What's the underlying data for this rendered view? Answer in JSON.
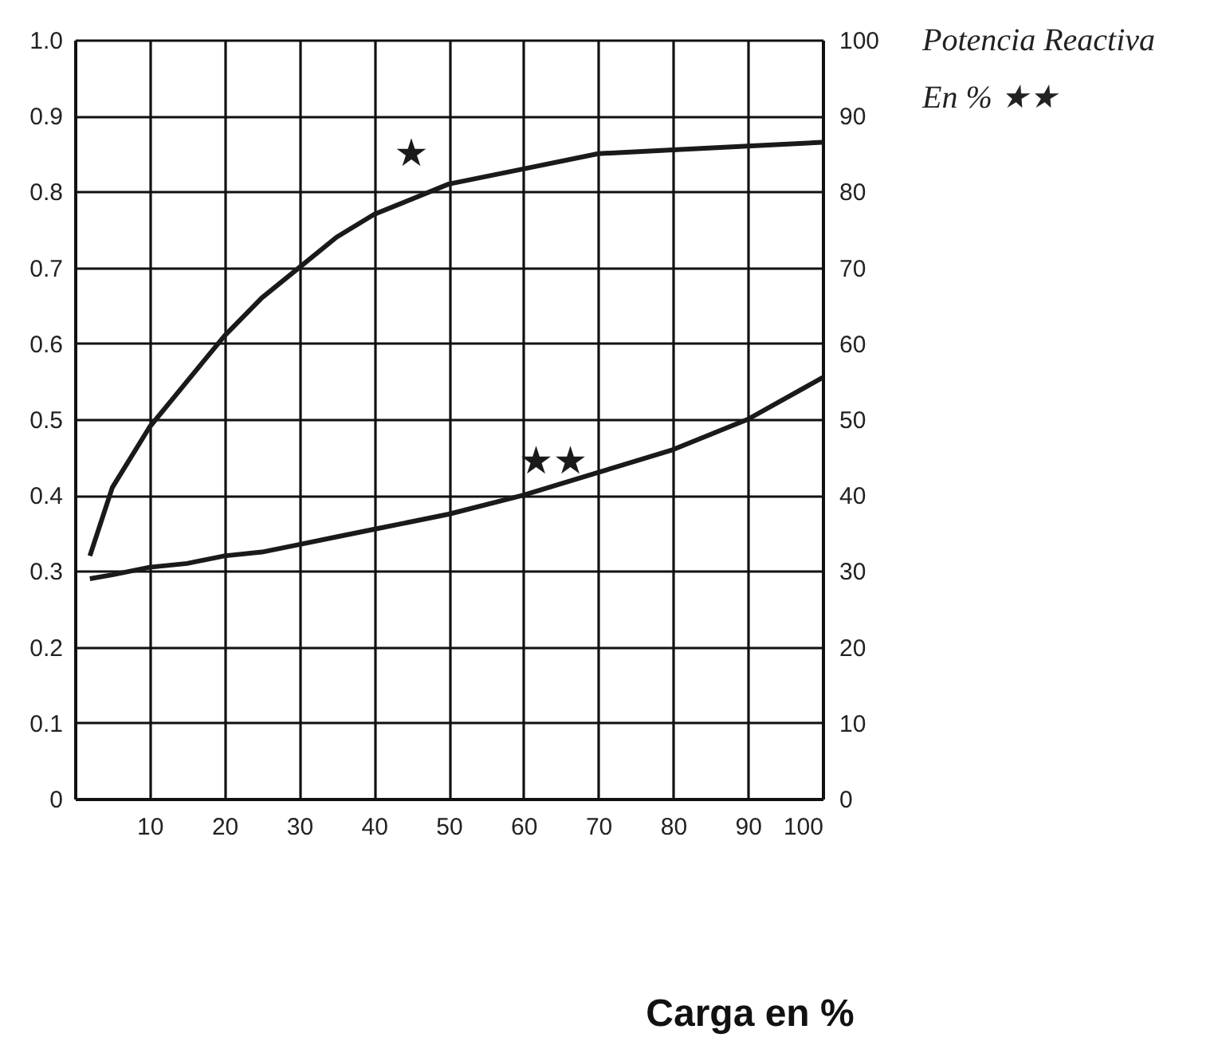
{
  "chart_data": {
    "type": "line",
    "xlabel": "Carga en %",
    "y2label": "Potencia Reactiva\nEn % ★★",
    "x": [
      2,
      5,
      10,
      15,
      20,
      25,
      30,
      35,
      40,
      45,
      50,
      60,
      70,
      80,
      90,
      100
    ],
    "series": [
      {
        "color": "#1a1a1a",
        "values": [
          0.32,
          0.41,
          0.49,
          0.55,
          0.61,
          0.66,
          0.7,
          0.74,
          0.77,
          0.79,
          0.81,
          0.83,
          0.85,
          0.855,
          0.86,
          0.865
        ]
      },
      {
        "color": "#1a1a1a",
        "axis": "y2",
        "values": [
          29,
          29.5,
          30.5,
          31,
          32,
          32.5,
          33.5,
          34.5,
          35.5,
          36.5,
          37.5,
          40,
          43,
          46,
          50,
          55.5
        ]
      }
    ],
    "annotations": [
      "★",
      "★★"
    ],
    "xlim": [
      0,
      100
    ],
    "xticks": [
      {
        "value": 0,
        "label": null
      },
      10,
      20,
      30,
      40,
      50,
      60,
      70,
      80,
      90,
      100
    ],
    "ylim": [
      0,
      1
    ],
    "yticks": [
      0,
      0.1,
      0.2,
      0.3,
      0.4,
      0.5,
      0.6,
      0.7,
      0.8,
      0.9,
      {
        "value": 1,
        "label": "1.0"
      }
    ],
    "y2lim": [
      0,
      100
    ],
    "y2ticks": [
      0,
      10,
      20,
      30,
      40,
      50,
      60,
      70,
      80,
      90,
      100
    ],
    "grid": true,
    "line_style": "solid",
    "marker": "none"
  }
}
